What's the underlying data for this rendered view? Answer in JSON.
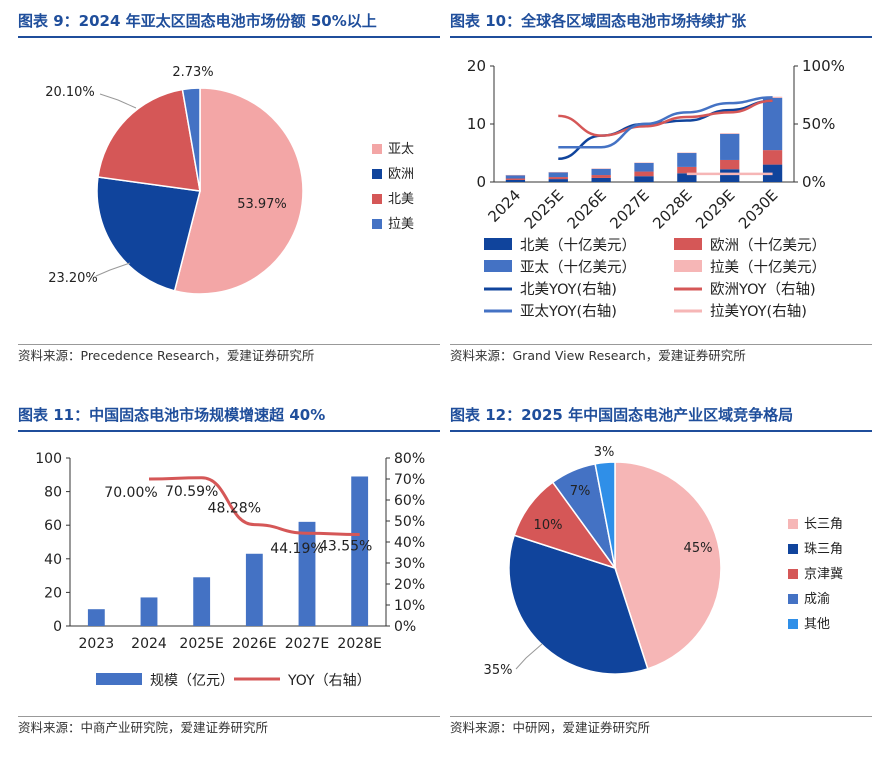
{
  "panels": {
    "fig9": {
      "title": "图表 9：2024 年亚太区固态电池市场份额 50%以上",
      "source": "资料来源：Precedence Research，爱建证券研究所"
    },
    "fig10": {
      "title": "图表 10：全球各区域固态电池市场持续扩张",
      "source": "资料来源：Grand View Research，爱建证券研究所"
    },
    "fig11": {
      "title": "图表 11：中国固态电池市场规模增速超 40%",
      "source": "资料来源：中商产业研究院，爱建证券研究所"
    },
    "fig12": {
      "title": "图表 12：2025 年中国固态电池产业区域竞争格局",
      "source": "资料来源：中研网，爱建证券研究所"
    }
  },
  "colors": {
    "pink": "#f3a6a6",
    "navy": "#10449c",
    "red": "#d55757",
    "blue": "#4472c4",
    "lightpink": "#f6b6b6",
    "brightblue": "#2f8fe8"
  },
  "chart_data": [
    {
      "id": "fig9",
      "type": "pie",
      "labels": [
        "亚太",
        "欧洲",
        "北美",
        "拉美"
      ],
      "values": [
        53.97,
        23.2,
        20.1,
        2.73
      ],
      "data_labels": [
        "53.97%",
        "23.20%",
        "20.10%",
        "2.73%"
      ],
      "legend": [
        "亚太",
        "欧洲",
        "北美",
        "拉美"
      ],
      "legend_position": "right"
    },
    {
      "id": "fig10",
      "type": "bar",
      "stacked": true,
      "categories": [
        "2024",
        "2025E",
        "2026E",
        "2027E",
        "2028E",
        "2029E",
        "2030E"
      ],
      "series": [
        {
          "name": "北美（十亿美元）",
          "values": [
            0.35,
            0.5,
            0.7,
            1.0,
            1.5,
            2.2,
            3.0
          ]
        },
        {
          "name": "欧洲（十亿美元）",
          "values": [
            0.25,
            0.35,
            0.5,
            0.8,
            1.1,
            1.6,
            2.5
          ]
        },
        {
          "name": "亚太（十亿美元）",
          "values": [
            0.6,
            0.85,
            1.1,
            1.5,
            2.4,
            4.5,
            9.0
          ]
        },
        {
          "name": "拉美（十亿美元）",
          "values": [
            0.02,
            0.03,
            0.04,
            0.06,
            0.08,
            0.12,
            0.2
          ]
        }
      ],
      "line_series": [
        {
          "name": "北美YOY(右轴)",
          "values": [
            null,
            0.2,
            0.4,
            0.5,
            0.53,
            0.62,
            0.7
          ]
        },
        {
          "name": "欧洲YOY（右轴)",
          "values": [
            null,
            0.57,
            0.4,
            0.48,
            0.56,
            0.6,
            0.7
          ]
        },
        {
          "name": "亚太YOY(右轴)",
          "values": [
            null,
            0.3,
            0.3,
            0.5,
            0.6,
            0.68,
            0.73
          ]
        },
        {
          "name": "拉美YOY(右轴)",
          "values": [
            null,
            null,
            null,
            null,
            0.07,
            0.07,
            0.07
          ]
        }
      ],
      "legend": [
        "北美（十亿美元）",
        "欧洲（十亿美元）",
        "亚太（十亿美元）",
        "拉美（十亿美元）",
        "北美YOY(右轴)",
        "欧洲YOY（右轴)",
        "亚太YOY(右轴)",
        "拉美YOY(右轴)"
      ],
      "y_ticks": [
        "0",
        "10",
        "20"
      ],
      "ylim": [
        0,
        20
      ],
      "y2_ticks": [
        "0%",
        "50%",
        "100%"
      ],
      "y2lim": [
        0,
        1
      ],
      "legend_position": "bottom"
    },
    {
      "id": "fig11",
      "type": "bar",
      "categories": [
        "2023",
        "2024",
        "2025E",
        "2026E",
        "2027E",
        "2028E"
      ],
      "series": [
        {
          "name": "规模（亿元）",
          "values": [
            10,
            17,
            29,
            43,
            62,
            89
          ]
        }
      ],
      "line_series": [
        {
          "name": "YOY（右轴）",
          "values": [
            null,
            70.0,
            70.59,
            48.28,
            44.19,
            43.55
          ]
        }
      ],
      "line_labels": [
        null,
        "70.00%",
        "70.59%",
        "48.28%",
        "44.19%",
        "43.55%"
      ],
      "y_ticks": [
        "0",
        "20",
        "40",
        "60",
        "80",
        "100"
      ],
      "ylim": [
        0,
        100
      ],
      "y2_ticks": [
        "0%",
        "10%",
        "20%",
        "30%",
        "40%",
        "50%",
        "60%",
        "70%",
        "80%"
      ],
      "y2lim": [
        0,
        80
      ],
      "legend": [
        "规模（亿元）",
        "YOY（右轴）"
      ],
      "legend_position": "bottom"
    },
    {
      "id": "fig12",
      "type": "pie",
      "labels": [
        "长三角",
        "珠三角",
        "京津冀",
        "成渝",
        "其他"
      ],
      "values": [
        45,
        35,
        10,
        7,
        3
      ],
      "data_labels": [
        "45%",
        "35%",
        "10%",
        "7%",
        "3%"
      ],
      "legend": [
        "长三角",
        "珠三角",
        "京津冀",
        "成渝",
        "其他"
      ],
      "legend_position": "right"
    }
  ]
}
